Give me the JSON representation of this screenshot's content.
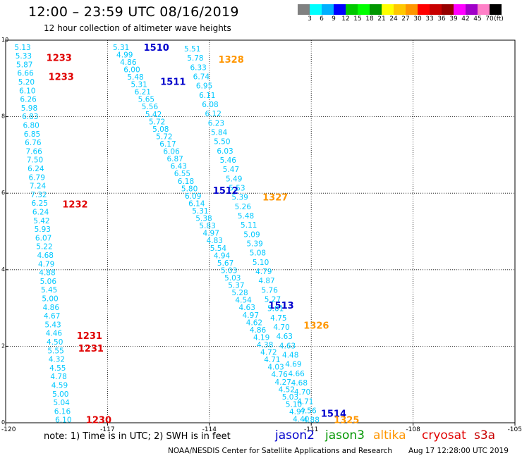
{
  "header": {
    "title": "12:00 – 23:59 UTC 08/16/2019",
    "subtitle": "12 hour collection of altimeter wave heights"
  },
  "colorbar": {
    "swatches": [
      "#808080",
      "#00ffff",
      "#00b0ff",
      "#0000ff",
      "#00c800",
      "#00ff00",
      "#009600",
      "#ffff00",
      "#ffc800",
      "#ff9600",
      "#ff0000",
      "#c80000",
      "#960000",
      "#ff00ff",
      "#a000c8",
      "#ff80c8",
      "#000000"
    ],
    "labels": [
      "3",
      "6",
      "9",
      "12",
      "15",
      "18",
      "21",
      "24",
      "27",
      "30",
      "33",
      "36",
      "39",
      "42",
      "45",
      "70"
    ],
    "unit": "(ft)"
  },
  "footer": {
    "note": "note:  1) Time is in UTC;  2) SWH is in feet",
    "credit": "NOAA/NESDIS Center for Satellite Applications and Research",
    "timestamp": "Aug 17 12:28:00 UTC 2019"
  },
  "satellites": [
    {
      "name": "jason2",
      "color": "#0000cc"
    },
    {
      "name": "jason3",
      "color": "#009600"
    },
    {
      "name": "altika",
      "color": "#ff9600"
    },
    {
      "name": "cryosat",
      "color": "#e00000"
    },
    {
      "name": "s3a",
      "color": "#c80000"
    }
  ],
  "chart_data": {
    "type": "scatter",
    "xlim": [
      -120,
      -105
    ],
    "ylim": [
      0,
      10
    ],
    "x_ticks": [
      "-120",
      "-117",
      "-114",
      "-111",
      "-108",
      "-105"
    ],
    "y_ticks": [
      "0",
      "2",
      "4",
      "6",
      "8",
      "10"
    ],
    "grid": true,
    "value_color": "#00c8ff",
    "tracks": [
      {
        "satellite": "cryosat",
        "x0": -119.5,
        "x1": -118.3,
        "y0": 9.82,
        "y1": 0.08,
        "values": [
          "5.13",
          "5.33",
          "5.87",
          "6.66",
          "5.20",
          "6.10",
          "6.26",
          "5.98",
          "6.83",
          "6.80",
          "6.85",
          "6.76",
          "7.66",
          "7.50",
          "6.24",
          "6.79",
          "7.24",
          "7.32",
          "6.25",
          "6.24",
          "5.42",
          "5.93",
          "6.07",
          "5.22",
          "4.68",
          "4.79",
          "4.88",
          "5.06",
          "5.45",
          "5.00",
          "4.86",
          "4.67",
          "5.43",
          "4.46",
          "4.50",
          "5.55",
          "4.32",
          "4.55",
          "4.78",
          "4.59",
          "5.00",
          "5.04",
          "6.16",
          "6.10"
        ],
        "time_labels": [
          {
            "text": "1233",
            "y": 9.55
          },
          {
            "text": "1233",
            "y": 9.05
          },
          {
            "text": "1232",
            "y": 5.72
          },
          {
            "text": "1231",
            "y": 2.28
          },
          {
            "text": "1231",
            "y": 1.95
          },
          {
            "text": "1230",
            "y": 0.08
          }
        ]
      },
      {
        "satellite": "jason2",
        "x0": -116.6,
        "x1": -111.3,
        "y0": 9.82,
        "y1": 0.1,
        "values": [
          "5.31",
          "4.99",
          "4.86",
          "6.00",
          "5.48",
          "5.31",
          "6.21",
          "5.65",
          "5.56",
          "5.42",
          "5.72",
          "5.08",
          "5.72",
          "6.17",
          "6.06",
          "6.87",
          "6.43",
          "6.55",
          "6.18",
          "5.80",
          "6.09",
          "6.14",
          "5.31",
          "5.38",
          "5.83",
          "4.97",
          "4.83",
          "5.54",
          "4.94",
          "5.67",
          "5.03",
          "5.03",
          "5.37",
          "5.28",
          "4.54",
          "4.63",
          "4.97",
          "4.62",
          "4.86",
          "4.19",
          "4.38",
          "4.72",
          "4.71",
          "4.03",
          "4.76",
          "4.27",
          "4.52",
          "5.03",
          "5.10",
          "4.97",
          "4.40"
        ],
        "time_labels": [
          {
            "text": "1510",
            "y": 9.82
          },
          {
            "text": "1511",
            "y": 8.92
          },
          {
            "text": "1512",
            "y": 6.08
          },
          {
            "text": "1513",
            "y": 3.08
          },
          {
            "text": "1514",
            "y": 0.25
          }
        ]
      },
      {
        "satellite": "altika",
        "x0": -114.5,
        "x1": -111.0,
        "y0": 9.78,
        "y1": 0.08,
        "values": [
          "5.51",
          "5.78",
          "6.33",
          "6.74",
          "6.95",
          "6.11",
          "6.08",
          "6.12",
          "6.23",
          "5.84",
          "5.50",
          "6.03",
          "5.46",
          "5.47",
          "5.49",
          "5.53",
          "5.39",
          "5.26",
          "5.48",
          "5.11",
          "5.09",
          "5.39",
          "5.08",
          "5.10",
          "4.79",
          "4.87",
          "5.76",
          "5.27",
          "5.01",
          "4.75",
          "4.70",
          "4.63",
          "4.63",
          "4.48",
          "4.69",
          "4.66",
          "4.68",
          "4.70",
          "4.71",
          "4.56",
          "4.88"
        ],
        "time_labels": [
          {
            "text": "1328",
            "y": 9.5
          },
          {
            "text": "1327",
            "y": 5.9
          },
          {
            "text": "1326",
            "y": 2.55
          },
          {
            "text": "1325",
            "y": 0.08
          }
        ]
      }
    ]
  }
}
